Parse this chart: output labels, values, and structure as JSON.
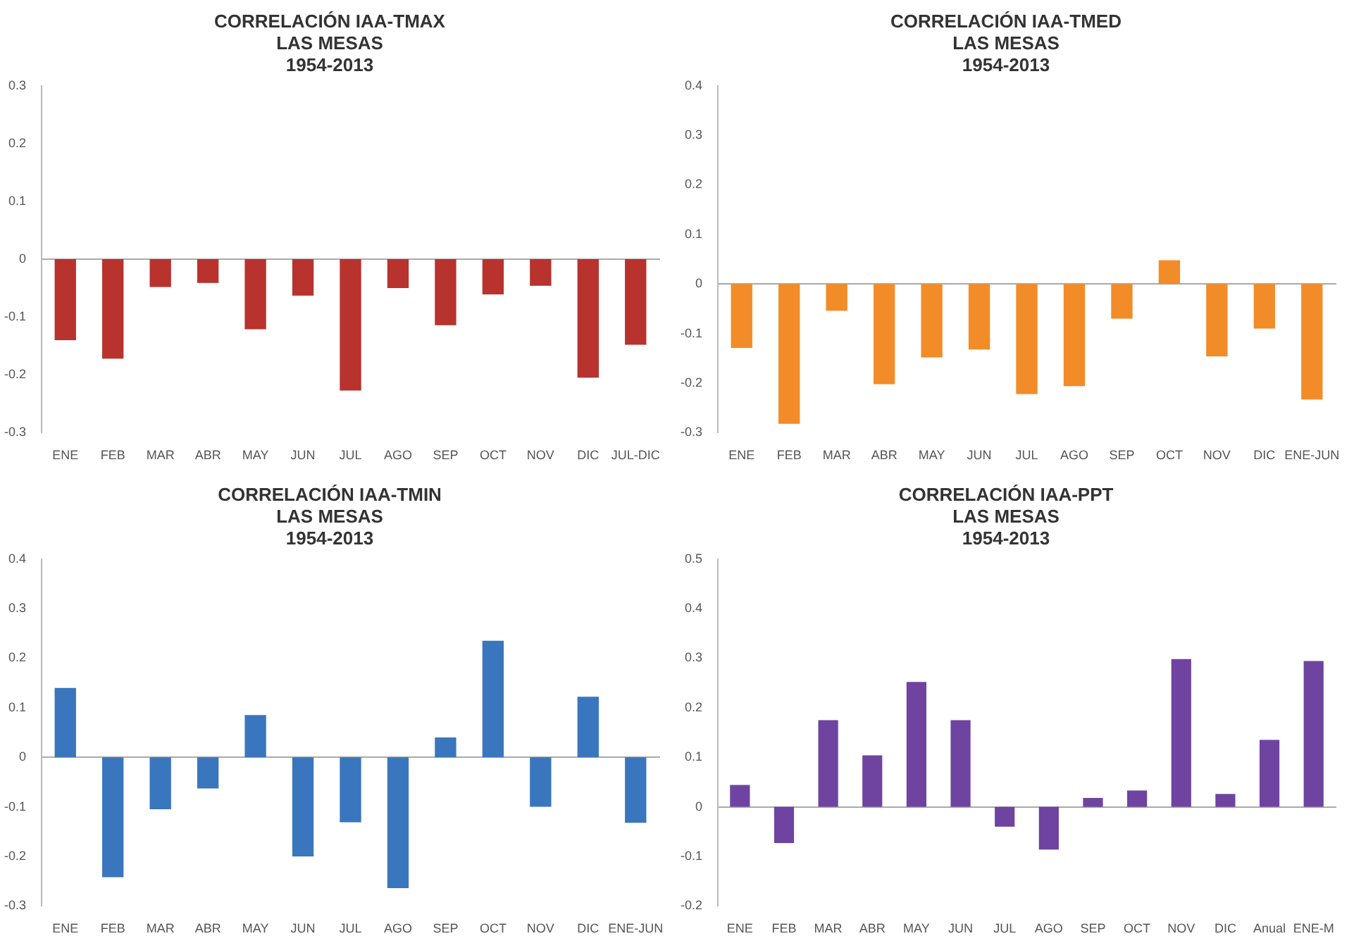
{
  "chart_data": [
    {
      "type": "bar",
      "title": "CORRELACIÓN IAA-TMAX\nLAS MESAS\n1954-2013",
      "categories": [
        "ENE",
        "FEB",
        "MAR",
        "ABR",
        "MAY",
        "JUN",
        "JUL",
        "AGO",
        "SEP",
        "OCT",
        "NOV",
        "DIC",
        "JUL-DIC"
      ],
      "series": [
        {
          "color": "#b8322e",
          "values": [
            -0.14,
            -0.172,
            -0.048,
            -0.041,
            -0.121,
            -0.063,
            -0.227,
            -0.05,
            -0.114,
            -0.061,
            -0.046,
            -0.205,
            -0.148
          ]
        }
      ],
      "ylim": [
        -0.3,
        0.3
      ],
      "yticks": [
        -0.3,
        -0.2,
        -0.1,
        0,
        0.1,
        0.2,
        0.3
      ],
      "legend": false
    },
    {
      "type": "bar",
      "title": "CORRELACIÓN IAA-TMED\nLAS MESAS\n1954-2013",
      "categories": [
        "ENE",
        "FEB",
        "MAR",
        "ABR",
        "MAY",
        "JUN",
        "JUL",
        "AGO",
        "SEP",
        "OCT",
        "NOV",
        "DIC",
        "ENE-JUN"
      ],
      "series": [
        {
          "color": "#f28c28",
          "values": [
            -0.129,
            -0.282,
            -0.054,
            -0.202,
            -0.148,
            -0.132,
            -0.222,
            -0.206,
            -0.07,
            0.048,
            -0.146,
            -0.09,
            -0.233
          ]
        }
      ],
      "ylim": [
        -0.3,
        0.4
      ],
      "yticks": [
        -0.3,
        -0.2,
        -0.1,
        0,
        0.1,
        0.2,
        0.3,
        0.4
      ],
      "legend": false
    },
    {
      "type": "bar",
      "title": "CORRELACIÓN IAA-TMIN\nLAS MESAS\n1954-2013",
      "categories": [
        "ENE",
        "FEB",
        "MAR",
        "ABR",
        "MAY",
        "JUN",
        "JUL",
        "AGO",
        "SEP",
        "OCT",
        "NOV",
        "DIC",
        "ENE-JUN"
      ],
      "series": [
        {
          "color": "#3a76bd",
          "values": [
            0.14,
            -0.242,
            -0.105,
            -0.063,
            0.085,
            -0.2,
            -0.131,
            -0.264,
            0.04,
            0.235,
            -0.1,
            0.122,
            -0.132
          ]
        }
      ],
      "ylim": [
        -0.3,
        0.4
      ],
      "yticks": [
        -0.3,
        -0.2,
        -0.1,
        0,
        0.1,
        0.2,
        0.3,
        0.4
      ],
      "legend": false
    },
    {
      "type": "bar",
      "title": "CORRELACIÓN IAA-PPT\nLAS MESAS\n1954-2013",
      "categories": [
        "ENE",
        "FEB",
        "MAR",
        "ABR",
        "MAY",
        "JUN",
        "JUL",
        "AGO",
        "SEP",
        "OCT",
        "NOV",
        "DIC",
        "Anual",
        "ENE-M"
      ],
      "series": [
        {
          "color": "#6f43a0",
          "values": [
            0.044,
            -0.073,
            0.175,
            0.104,
            0.252,
            0.175,
            -0.04,
            -0.086,
            0.018,
            0.033,
            0.298,
            0.026,
            0.135,
            0.294
          ]
        }
      ],
      "ylim": [
        -0.2,
        0.5
      ],
      "yticks": [
        -0.2,
        -0.1,
        0,
        0.1,
        0.2,
        0.3,
        0.4,
        0.5
      ],
      "legend": false
    }
  ]
}
